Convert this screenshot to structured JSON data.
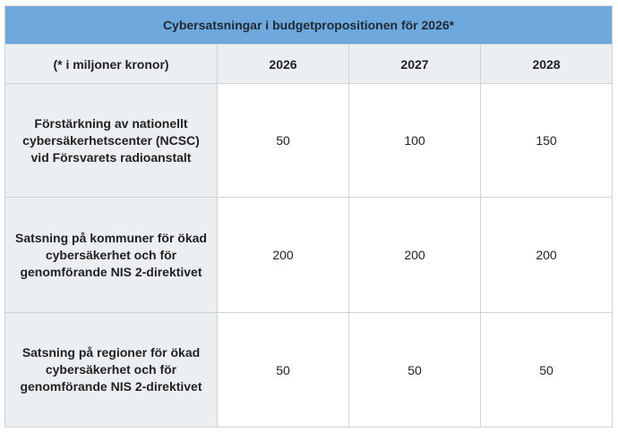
{
  "table": {
    "title": "Cybersatsningar i budgetpropositionen för 2026*",
    "header": {
      "unit_note": "(* i miljoner kronor)",
      "years": [
        "2026",
        "2027",
        "2028"
      ]
    },
    "rows": [
      {
        "label": "Förstärkning av nationellt cybersäkerhetscenter (NCSC) vid Försvarets radioanstalt",
        "values": [
          "50",
          "100",
          "150"
        ]
      },
      {
        "label": "Satsning på kommuner för ökad cybersäkerhet och för genomförande NIS 2-direktivet",
        "values": [
          "200",
          "200",
          "200"
        ]
      },
      {
        "label": "Satsning på regioner för ökad cybersäkerhet och för genomförande NIS 2-direktivet",
        "values": [
          "50",
          "50",
          "50"
        ]
      }
    ]
  },
  "colors": {
    "title_background": "#6ea8dc",
    "header_background": "#eceff1",
    "border": "#cfd3d6"
  }
}
